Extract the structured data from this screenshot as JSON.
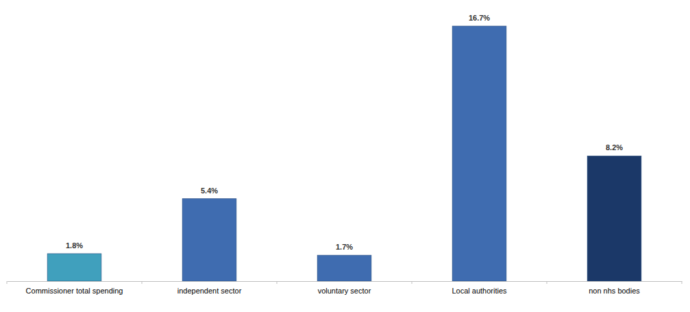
{
  "chart_data": {
    "type": "bar",
    "categories": [
      "Commissioner total spending",
      "independent sector",
      "voluntary sector",
      "Local authorities",
      "non nhs bodies"
    ],
    "values": [
      1.8,
      5.4,
      1.7,
      16.7,
      8.2
    ],
    "value_labels": [
      "1.8%",
      "5.4%",
      "1.7%",
      "16.7%",
      "8.2%"
    ],
    "colors": [
      "#40a0bd",
      "#3f6cb0",
      "#3f6cb0",
      "#3f6cb0",
      "#1b3868"
    ],
    "data_labels": true,
    "tick_labels": "x"
  }
}
